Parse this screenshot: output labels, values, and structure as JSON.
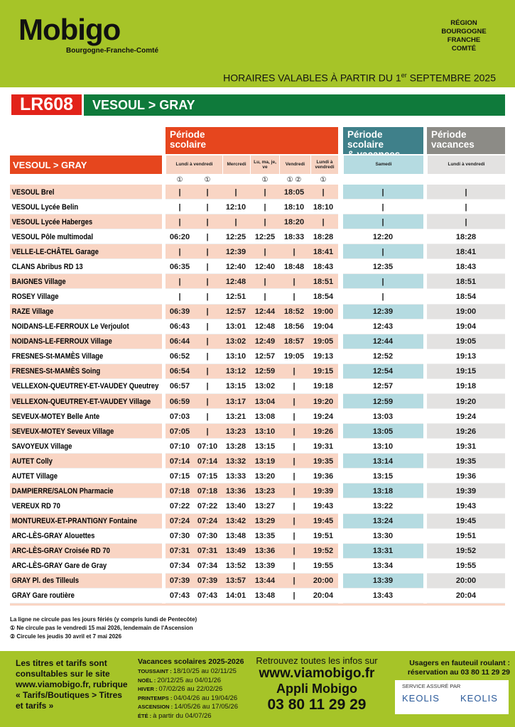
{
  "header": {
    "logo": "Mobigo",
    "logo_subtitle": "Bourgogne-Franche-Comté",
    "region": [
      "RÉGION",
      "BOURGOGNE",
      "FRANCHE",
      "COMTÉ"
    ],
    "validity": [
      "HORAIRES VALABLES À PARTIR DU 1",
      "er",
      "SEPTEMBRE 2025"
    ]
  },
  "line": {
    "code": "LR608",
    "direction": "VESOUL > GRAY"
  },
  "table": {
    "periods": [
      [
        "Période",
        "scolaire"
      ],
      [
        "Période scolaire",
        "& vacances"
      ],
      [
        "Période",
        "vacances"
      ]
    ],
    "route_label": "VESOUL > GRAY",
    "columns": [
      "Lundi à vendredi",
      "Mercredi",
      "Lu, ma, je, ve",
      "Vendredi",
      "Lundi à vendredi",
      "Samedi",
      "Lundi à vendredi"
    ],
    "notes": [
      "①",
      "①",
      null,
      "①",
      "① ②",
      "①",
      null,
      null
    ],
    "stops": [
      {
        "name": "VESOUL Brel",
        "times": [
          "|",
          "|",
          "|",
          "|",
          "18:05",
          "|",
          "|",
          "|"
        ]
      },
      {
        "name": "VESOUL Lycée Belin",
        "times": [
          "|",
          "|",
          "12:10",
          "|",
          "18:10",
          "18:10",
          "|",
          "|"
        ]
      },
      {
        "name": "VESOUL Lycée Haberges",
        "times": [
          "|",
          "|",
          "|",
          "|",
          "18:20",
          "|",
          "|",
          "|"
        ]
      },
      {
        "name": "VESOUL Pôle multimodal",
        "times": [
          "06:20",
          "|",
          "12:25",
          "12:25",
          "18:33",
          "18:28",
          "12:20",
          "18:28"
        ]
      },
      {
        "name": "VELLE-LE-CHÂTEL Garage",
        "times": [
          "|",
          "|",
          "12:39",
          "|",
          "|",
          "18:41",
          "|",
          "18:41"
        ]
      },
      {
        "name": "CLANS Abribus RD 13",
        "times": [
          "06:35",
          "|",
          "12:40",
          "12:40",
          "18:48",
          "18:43",
          "12:35",
          "18:43"
        ]
      },
      {
        "name": "BAIGNES Village",
        "times": [
          "|",
          "|",
          "12:48",
          "|",
          "|",
          "18:51",
          "|",
          "18:51"
        ]
      },
      {
        "name": "ROSEY Village",
        "times": [
          "|",
          "|",
          "12:51",
          "|",
          "|",
          "18:54",
          "|",
          "18:54"
        ]
      },
      {
        "name": "RAZE Village",
        "times": [
          "06:39",
          "|",
          "12:57",
          "12:44",
          "18:52",
          "19:00",
          "12:39",
          "19:00"
        ]
      },
      {
        "name": "NOIDANS-LE-FERROUX Le Verjoulot",
        "times": [
          "06:43",
          "|",
          "13:01",
          "12:48",
          "18:56",
          "19:04",
          "12:43",
          "19:04"
        ]
      },
      {
        "name": "NOIDANS-LE-FERROUX Village",
        "times": [
          "06:44",
          "|",
          "13:02",
          "12:49",
          "18:57",
          "19:05",
          "12:44",
          "19:05"
        ]
      },
      {
        "name": "FRESNES-St-MAMÈS Village",
        "times": [
          "06:52",
          "|",
          "13:10",
          "12:57",
          "19:05",
          "19:13",
          "12:52",
          "19:13"
        ]
      },
      {
        "name": "FRESNES-St-MAMÈS Soing",
        "times": [
          "06:54",
          "|",
          "13:12",
          "12:59",
          "|",
          "19:15",
          "12:54",
          "19:15"
        ]
      },
      {
        "name": "VELLEXON-QUEUTREY-ET-VAUDEY Queutrey",
        "times": [
          "06:57",
          "|",
          "13:15",
          "13:02",
          "|",
          "19:18",
          "12:57",
          "19:18"
        ]
      },
      {
        "name": "VELLEXON-QUEUTREY-ET-VAUDEY Village",
        "times": [
          "06:59",
          "|",
          "13:17",
          "13:04",
          "|",
          "19:20",
          "12:59",
          "19:20"
        ]
      },
      {
        "name": "SEVEUX-MOTEY Belle Ante",
        "times": [
          "07:03",
          "|",
          "13:21",
          "13:08",
          "|",
          "19:24",
          "13:03",
          "19:24"
        ]
      },
      {
        "name": "SEVEUX-MOTEY Seveux Village",
        "times": [
          "07:05",
          "|",
          "13:23",
          "13:10",
          "|",
          "19:26",
          "13:05",
          "19:26"
        ]
      },
      {
        "name": "SAVOYEUX Village",
        "times": [
          "07:10",
          "07:10",
          "13:28",
          "13:15",
          "|",
          "19:31",
          "13:10",
          "19:31"
        ]
      },
      {
        "name": "AUTET Colly",
        "times": [
          "07:14",
          "07:14",
          "13:32",
          "13:19",
          "|",
          "19:35",
          "13:14",
          "19:35"
        ]
      },
      {
        "name": "AUTET Village",
        "times": [
          "07:15",
          "07:15",
          "13:33",
          "13:20",
          "|",
          "19:36",
          "13:15",
          "19:36"
        ]
      },
      {
        "name": "DAMPIERRE/SALON Pharmacie",
        "times": [
          "07:18",
          "07:18",
          "13:36",
          "13:23",
          "|",
          "19:39",
          "13:18",
          "19:39"
        ]
      },
      {
        "name": "VEREUX RD 70",
        "times": [
          "07:22",
          "07:22",
          "13:40",
          "13:27",
          "|",
          "19:43",
          "13:22",
          "19:43"
        ]
      },
      {
        "name": "MONTUREUX-ET-PRANTIGNY Fontaine",
        "times": [
          "07:24",
          "07:24",
          "13:42",
          "13:29",
          "|",
          "19:45",
          "13:24",
          "19:45"
        ]
      },
      {
        "name": "ARC-LÈS-GRAY Alouettes",
        "times": [
          "07:30",
          "07:30",
          "13:48",
          "13:35",
          "|",
          "19:51",
          "13:30",
          "19:51"
        ]
      },
      {
        "name": "ARC-LÈS-GRAY Croisée RD 70",
        "times": [
          "07:31",
          "07:31",
          "13:49",
          "13:36",
          "|",
          "19:52",
          "13:31",
          "19:52"
        ]
      },
      {
        "name": "ARC-LÈS-GRAY Gare de Gray",
        "times": [
          "07:34",
          "07:34",
          "13:52",
          "13:39",
          "|",
          "19:55",
          "13:34",
          "19:55"
        ]
      },
      {
        "name": "GRAY Pl. des Tilleuls",
        "times": [
          "07:39",
          "07:39",
          "13:57",
          "13:44",
          "|",
          "20:00",
          "13:39",
          "20:00"
        ]
      },
      {
        "name": "GRAY Gare routière",
        "times": [
          "07:43",
          "07:43",
          "14:01",
          "13:48",
          "|",
          "20:04",
          "13:43",
          "20:04"
        ]
      }
    ]
  },
  "notes": [
    "La ligne ne circule pas les jours fériés (y compris lundi de Pentecôte)",
    "① Ne circule pas le vendredi 15 mai 2026, lendemain de l'Ascension",
    "② Circule les jeudis 30 avril et 7 mai 2026"
  ],
  "footer": {
    "tariffs": "Les titres et tarifs sont consultables sur le site www.viamobigo.fr, rubrique « Tarifs/Boutiques > Titres et tarifs »",
    "holidays_title": "Vacances scolaires 2025-2026",
    "holidays": [
      {
        "label": "TOUSSAINT :",
        "dates": "18/10/25 au 02/11/25"
      },
      {
        "label": "NOËL :",
        "dates": "20/12/25 au 04/01/26"
      },
      {
        "label": "HIVER :",
        "dates": "07/02/26 au 22/02/26"
      },
      {
        "label": "PRINTEMPS :",
        "dates": "04/04/26 au 19/04/26"
      },
      {
        "label": "ASCENSION :",
        "dates": "14/05/26 au 17/05/26"
      },
      {
        "label": "ÉTÉ :",
        "dates": "à partir du 04/07/26"
      }
    ],
    "info": [
      "Retrouvez toutes les infos sur",
      "www.viamobigo.fr",
      "Appli Mobigo",
      "03 80 11 29 29"
    ],
    "wheelchair": [
      "Usagers en fauteuil roulant :",
      "réservation au 03 80 11 29 29"
    ],
    "operator_label": "SERVICE ASSURÉ PAR",
    "operators": [
      "KEOLIS",
      "KEOLIS"
    ]
  }
}
